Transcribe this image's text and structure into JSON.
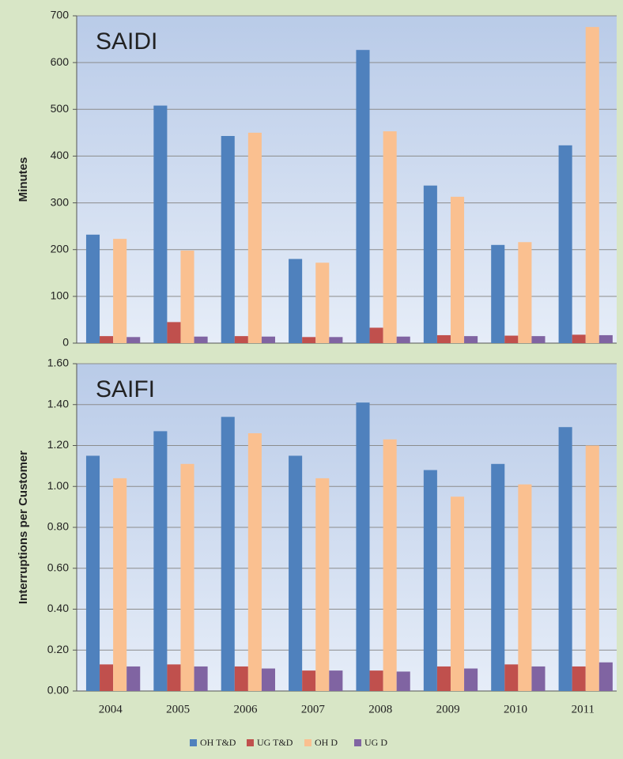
{
  "chart_data": [
    {
      "type": "bar",
      "title": "SAIDI",
      "y_label": "Minutes",
      "ylim": [
        0,
        700
      ],
      "yticks": [
        0,
        100,
        200,
        300,
        400,
        500,
        600,
        700
      ],
      "grid": true,
      "series": [
        {
          "name": "OH T&D",
          "color": "#4f81bd",
          "values": [
            232,
            508,
            443,
            180,
            627,
            337,
            210,
            423
          ]
        },
        {
          "name": "UG T&D",
          "color": "#c0504d",
          "values": [
            15,
            45,
            15,
            13,
            33,
            17,
            16,
            18
          ]
        },
        {
          "name": "OH D",
          "color": "#fac090",
          "values": [
            223,
            198,
            450,
            172,
            453,
            313,
            216,
            676
          ]
        },
        {
          "name": "UG D",
          "color": "#8064a2",
          "values": [
            13,
            14,
            14,
            13,
            14,
            15,
            15,
            17
          ]
        }
      ]
    },
    {
      "type": "bar",
      "title": "SAIFI",
      "y_label": "Interruptions per Customer",
      "categories": [
        "2004",
        "2005",
        "2006",
        "2007",
        "2008",
        "2009",
        "2010",
        "2011"
      ],
      "ylim": [
        0,
        1.6
      ],
      "yticks": [
        {
          "value": 0,
          "label": "0.00"
        },
        {
          "value": 0.2,
          "label": "0.20"
        },
        {
          "value": 0.4,
          "label": "0.40"
        },
        {
          "value": 0.6,
          "label": "0.60"
        },
        {
          "value": 0.8,
          "label": "0.80"
        },
        {
          "value": 1,
          "label": "1.00"
        },
        {
          "value": 1.2,
          "label": "1.20"
        },
        {
          "value": 1.4,
          "label": "1.40"
        },
        {
          "value": 1.6,
          "label": "1.60"
        }
      ],
      "grid": true,
      "series": [
        {
          "name": "OH T&D",
          "color": "#4f81bd",
          "values": [
            1.15,
            1.27,
            1.34,
            1.15,
            1.41,
            1.08,
            1.11,
            1.29
          ]
        },
        {
          "name": "UG T&D",
          "color": "#c0504d",
          "values": [
            0.13,
            0.13,
            0.12,
            0.1,
            0.1,
            0.12,
            0.13,
            0.12
          ]
        },
        {
          "name": "OH D",
          "color": "#fac090",
          "values": [
            1.04,
            1.11,
            1.26,
            1.04,
            1.23,
            0.95,
            1.01,
            1.2
          ]
        },
        {
          "name": "UG D",
          "color": "#8064a2",
          "values": [
            0.12,
            0.12,
            0.11,
            0.1,
            0.095,
            0.11,
            0.12,
            0.14
          ]
        }
      ]
    }
  ]
}
